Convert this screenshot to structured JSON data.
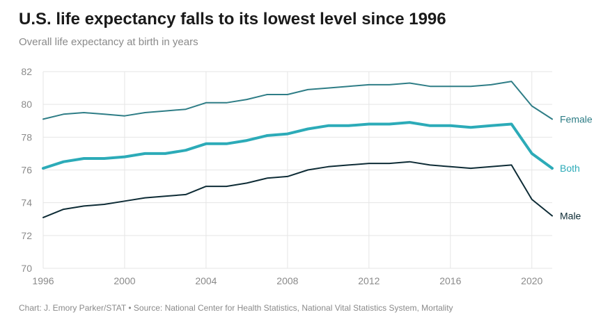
{
  "title": "U.S. life expectancy falls to its lowest level since 1996",
  "subtitle": "Overall life expectancy at birth in years",
  "footer": "Chart: J. Emory Parker/STAT • Source: National Center for Health Statistics, National Vital Statistics System, Mortality",
  "colors": {
    "grid": "#e5e5e5",
    "tick": "#8a8a8a"
  },
  "chart_data": {
    "type": "line",
    "x": [
      1996,
      1997,
      1998,
      1999,
      2000,
      2001,
      2002,
      2003,
      2004,
      2005,
      2006,
      2007,
      2008,
      2009,
      2010,
      2011,
      2012,
      2013,
      2014,
      2015,
      2016,
      2017,
      2018,
      2019,
      2020,
      2021
    ],
    "xlim": [
      1996,
      2021
    ],
    "ylim": [
      70,
      82
    ],
    "xticks": [
      1996,
      2000,
      2004,
      2008,
      2012,
      2016,
      2020
    ],
    "yticks": [
      70,
      72,
      74,
      76,
      78,
      80,
      82
    ],
    "grid": true,
    "series": [
      {
        "name": "Female",
        "color": "#2e7d86",
        "width": 2,
        "values": [
          79.1,
          79.4,
          79.5,
          79.4,
          79.3,
          79.5,
          79.6,
          79.7,
          80.1,
          80.1,
          80.3,
          80.6,
          80.6,
          80.9,
          81.0,
          81.1,
          81.2,
          81.2,
          81.3,
          81.1,
          81.1,
          81.1,
          81.2,
          81.4,
          79.9,
          79.1
        ]
      },
      {
        "name": "Both",
        "color": "#2cabb8",
        "width": 4,
        "values": [
          76.1,
          76.5,
          76.7,
          76.7,
          76.8,
          77.0,
          77.0,
          77.2,
          77.6,
          77.6,
          77.8,
          78.1,
          78.2,
          78.5,
          78.7,
          78.7,
          78.8,
          78.8,
          78.9,
          78.7,
          78.7,
          78.6,
          78.7,
          78.8,
          77.0,
          76.1
        ]
      },
      {
        "name": "Male",
        "color": "#0d2b35",
        "width": 2,
        "values": [
          73.1,
          73.6,
          73.8,
          73.9,
          74.1,
          74.3,
          74.4,
          74.5,
          75.0,
          75.0,
          75.2,
          75.5,
          75.6,
          76.0,
          76.2,
          76.3,
          76.4,
          76.4,
          76.5,
          76.3,
          76.2,
          76.1,
          76.2,
          76.3,
          74.2,
          73.2
        ]
      }
    ]
  }
}
